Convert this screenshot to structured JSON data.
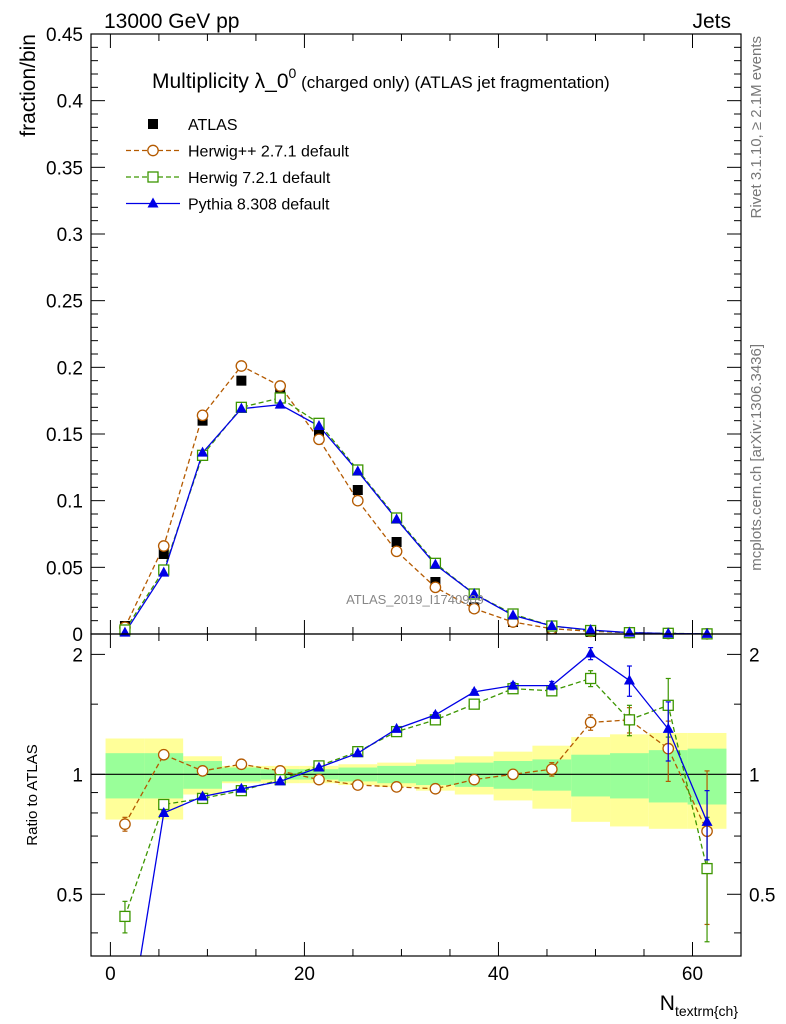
{
  "header": {
    "left": "13000 GeV pp",
    "right": "Jets"
  },
  "side_labels": {
    "rivet": "Rivet 3.1.10, ≥ 2.1M events",
    "mcplots": "mcplots.cern.ch [arXiv:1306.3436]"
  },
  "watermark": "ATLAS_2019_I1740909",
  "chart_data": [
    {
      "type": "line",
      "title": "Multiplicity λ_0",
      "title_sup": "0",
      "title_suffix": " (charged only) (ATLAS jet fragmentation)",
      "ylabel": "fraction/bin",
      "xlim": [
        -2,
        65
      ],
      "ylim": [
        0,
        0.45
      ],
      "y_ticks": [
        0,
        0.05,
        0.1,
        0.15,
        0.2,
        0.25,
        0.3,
        0.35,
        0.4,
        0.45
      ],
      "y_tick_labels": [
        "0",
        "0.05",
        "0.1",
        "0.15",
        "0.2",
        "0.25",
        "0.3",
        "0.35",
        "0.4",
        "0.45"
      ],
      "legend_position": "top-left",
      "x": [
        1.5,
        5.5,
        9.5,
        13.5,
        17.5,
        21.5,
        25.5,
        29.5,
        33.5,
        37.5,
        41.5,
        45.5,
        49.5,
        53.5,
        57.5,
        61.5
      ],
      "series": [
        {
          "name": "ATLAS",
          "color": "#000000",
          "marker": "filled-square",
          "line": "none",
          "values": [
            0.006,
            0.06,
            0.16,
            0.19,
            0.182,
            0.15,
            0.108,
            0.069,
            0.039,
            0.02,
            0.009,
            0.004,
            0.0015,
            0.0007,
            0.0003,
            0.0001
          ]
        },
        {
          "name": "Herwig++ 2.7.1 default",
          "color": "#b45a00",
          "marker": "open-circle",
          "line": "dashed",
          "values": [
            0.005,
            0.066,
            0.164,
            0.201,
            0.186,
            0.146,
            0.1,
            0.062,
            0.035,
            0.019,
            0.009,
            0.004,
            0.002,
            0.001,
            0.0004,
            0.0001
          ]
        },
        {
          "name": "Herwig 7.2.1 default",
          "color": "#3c9600",
          "marker": "open-square",
          "line": "dashed",
          "values": [
            0.003,
            0.048,
            0.134,
            0.17,
            0.177,
            0.158,
            0.123,
            0.087,
            0.053,
            0.03,
            0.015,
            0.006,
            0.0026,
            0.001,
            0.0005,
            0.0001
          ]
        },
        {
          "name": "Pythia 8.308 default",
          "color": "#0000e6",
          "marker": "filled-triangle",
          "line": "solid",
          "values": [
            0.001,
            0.046,
            0.136,
            0.169,
            0.172,
            0.156,
            0.122,
            0.086,
            0.052,
            0.03,
            0.014,
            0.006,
            0.003,
            0.001,
            0.0004,
            0.0001
          ]
        }
      ]
    },
    {
      "type": "line",
      "ylabel": "Ratio to ATLAS",
      "xlabel_main": "N",
      "xlabel_sub": "textrm{ch}",
      "xlim": [
        -2,
        65
      ],
      "ylim": [
        0.35,
        2.25
      ],
      "x_ticks": [
        0,
        20,
        40,
        60
      ],
      "x_tick_labels": [
        "0",
        "20",
        "40",
        "60"
      ],
      "y_ticks": [
        0.5,
        1,
        2
      ],
      "y_tick_labels": [
        "0.5",
        "1",
        "2"
      ],
      "reference_line": 1,
      "x": [
        1.5,
        5.5,
        9.5,
        13.5,
        17.5,
        21.5,
        25.5,
        29.5,
        33.5,
        37.5,
        41.5,
        45.5,
        49.5,
        53.5,
        57.5,
        61.5
      ],
      "bin_edges": [
        -0.5,
        3.5,
        7.5,
        11.5,
        15.5,
        19.5,
        23.5,
        27.5,
        31.5,
        35.5,
        39.5,
        43.5,
        47.5,
        51.5,
        55.5,
        59.5,
        63.5
      ],
      "bands": {
        "inner": {
          "color": "#99ff99",
          "half_width": [
            0.13,
            0.13,
            0.08,
            0.04,
            0.03,
            0.03,
            0.04,
            0.05,
            0.06,
            0.07,
            0.08,
            0.09,
            0.12,
            0.13,
            0.15,
            0.16,
            0.16
          ]
        },
        "outer": {
          "color": "#ffff99",
          "half_width": [
            0.23,
            0.23,
            0.11,
            0.05,
            0.05,
            0.05,
            0.06,
            0.07,
            0.09,
            0.11,
            0.14,
            0.18,
            0.24,
            0.26,
            0.27,
            0.27,
            0.27
          ]
        }
      },
      "series": [
        {
          "name": "Herwig++ 2.7.1 default",
          "color": "#b45a00",
          "marker": "open-circle",
          "line": "dashed",
          "values": [
            0.75,
            1.12,
            1.02,
            1.06,
            1.02,
            0.97,
            0.94,
            0.93,
            0.92,
            0.97,
            1.0,
            1.03,
            1.35,
            1.37,
            1.16,
            0.72
          ],
          "errors": [
            0.03,
            0.01,
            0.01,
            0.01,
            0.01,
            0.01,
            0.01,
            0.01,
            0.01,
            0.01,
            0.02,
            0.04,
            0.06,
            0.1,
            0.2,
            0.3
          ]
        },
        {
          "name": "Herwig 7.2.1 default",
          "color": "#3c9600",
          "marker": "open-square",
          "line": "dashed",
          "values": [
            0.44,
            0.84,
            0.87,
            0.91,
            0.97,
            1.05,
            1.14,
            1.28,
            1.37,
            1.5,
            1.64,
            1.62,
            1.74,
            1.37,
            1.49,
            0.58
          ],
          "errors": [
            0.04,
            0.01,
            0.01,
            0.01,
            0.01,
            0.01,
            0.01,
            0.01,
            0.02,
            0.02,
            0.03,
            0.04,
            0.08,
            0.12,
            0.25,
            0.2
          ]
        },
        {
          "name": "Pythia 8.308 default",
          "color": "#0000e6",
          "marker": "filled-triangle",
          "line": "solid",
          "values": [
            0.2,
            0.8,
            0.88,
            0.92,
            0.96,
            1.04,
            1.13,
            1.3,
            1.41,
            1.61,
            1.67,
            1.67,
            2.01,
            1.72,
            1.3,
            0.76
          ],
          "errors": [
            0.02,
            0.01,
            0.01,
            0.01,
            0.01,
            0.01,
            0.01,
            0.01,
            0.02,
            0.02,
            0.03,
            0.04,
            0.07,
            0.15,
            0.22,
            0.15
          ]
        }
      ]
    }
  ]
}
